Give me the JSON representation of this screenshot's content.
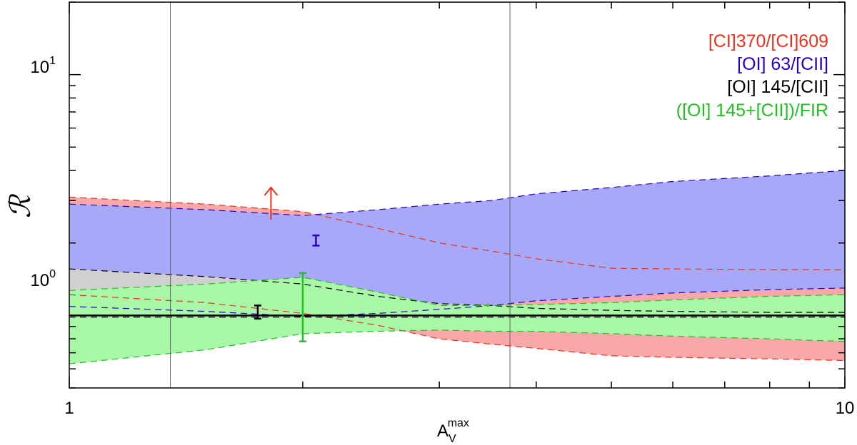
{
  "chart_data": {
    "type": "area",
    "x_scale": "log",
    "y_scale": "log",
    "xlim": [
      1,
      10
    ],
    "ylim": [
      0.5,
      20
    ],
    "xlabel_main": "A",
    "xlabel_sub": "V",
    "xlabel_sup": "max",
    "ylabel": "ℛ",
    "x_tick_labels": [
      {
        "value": 1,
        "label": "1"
      },
      {
        "value": 10,
        "label": "10"
      }
    ],
    "y_tick_labels": [
      {
        "value": 1,
        "base": "10",
        "exp": "0"
      },
      {
        "value": 10,
        "base": "10",
        "exp": "1"
      }
    ],
    "vertical_lines": [
      1.35,
      3.7
    ],
    "reference_line": 1.0,
    "bands": [
      {
        "key": "ci",
        "fill": "#f8a8a8",
        "edge": "#e8321e",
        "x": [
          1.0,
          1.5,
          2.0,
          2.5,
          3.0,
          3.5,
          4.0,
          5.0,
          6.0,
          8.0,
          10.0
        ],
        "upper": [
          3.1,
          2.9,
          2.7,
          2.3,
          2.0,
          1.85,
          1.72,
          1.57,
          1.56,
          1.55,
          1.55
        ],
        "lower": [
          1.22,
          1.13,
          1.02,
          0.91,
          0.8,
          0.76,
          0.73,
          0.68,
          0.67,
          0.66,
          0.65
        ]
      },
      {
        "key": "oi63",
        "fill": "#a8a8f8",
        "edge": "#2a00c0",
        "x": [
          1.0,
          1.5,
          2.0,
          2.5,
          3.0,
          3.5,
          4.0,
          5.0,
          6.0,
          8.0,
          10.0
        ],
        "upper": [
          2.9,
          2.75,
          2.6,
          2.75,
          2.9,
          3.0,
          3.2,
          3.4,
          3.6,
          3.8,
          4.0
        ],
        "lower": [
          1.09,
          1.04,
          0.99,
          1.02,
          1.06,
          1.1,
          1.15,
          1.2,
          1.24,
          1.28,
          1.3
        ]
      },
      {
        "key": "oi145",
        "fill": "#d0d0d0",
        "edge": "#000000",
        "x": [
          1.0,
          1.5,
          2.0,
          2.5,
          3.0,
          3.5,
          4.0,
          5.0,
          6.0,
          8.0,
          10.0
        ],
        "upper": [
          1.56,
          1.45,
          1.35,
          1.2,
          1.12,
          1.1,
          1.07,
          1.05,
          1.04,
          1.03,
          1.03
        ],
        "lower": [
          0.985,
          0.985,
          0.985,
          0.985,
          0.985,
          0.985,
          0.985,
          0.985,
          0.985,
          0.985,
          0.985
        ]
      },
      {
        "key": "fir",
        "fill": "#a8f8a8",
        "edge": "#22c022",
        "x": [
          1.0,
          1.5,
          2.0,
          2.5,
          3.0,
          3.5,
          4.0,
          5.0,
          6.0,
          8.0,
          10.0
        ],
        "upper": [
          1.27,
          1.35,
          1.44,
          1.25,
          1.1,
          1.1,
          1.11,
          1.13,
          1.16,
          1.2,
          1.22
        ],
        "lower": [
          0.63,
          0.72,
          0.84,
          0.86,
          0.87,
          0.86,
          0.86,
          0.84,
          0.82,
          0.8,
          0.78
        ]
      }
    ],
    "error_bars": [
      {
        "key": "oi63",
        "x": 2.08,
        "y_low": 1.95,
        "y_high": 2.15,
        "color": "#2a00c0"
      },
      {
        "key": "oi145",
        "x": 1.75,
        "y_low": 0.97,
        "y_high": 1.1,
        "color": "#000000"
      },
      {
        "key": "fir",
        "x": 2.0,
        "y_low": 0.78,
        "y_high": 1.5,
        "color": "#22c022"
      }
    ],
    "lower_limit_arrows": [
      {
        "key": "ci",
        "x": 1.82,
        "y": 2.5,
        "y_tip": 3.4,
        "color": "#e8321e"
      }
    ],
    "legend": [
      {
        "key": "ci",
        "label": "[CI]370/[CI]609",
        "color": "#e8321e"
      },
      {
        "key": "oi63",
        "label": "[OI] 63/[CII]",
        "color": "#2a00c0"
      },
      {
        "key": "oi145",
        "label": "[OI] 145/[CII]",
        "color": "#000000"
      },
      {
        "key": "fir",
        "label": "([OI] 145+[CII])/FIR",
        "color": "#22c022"
      }
    ],
    "legend_position": "top-right"
  }
}
